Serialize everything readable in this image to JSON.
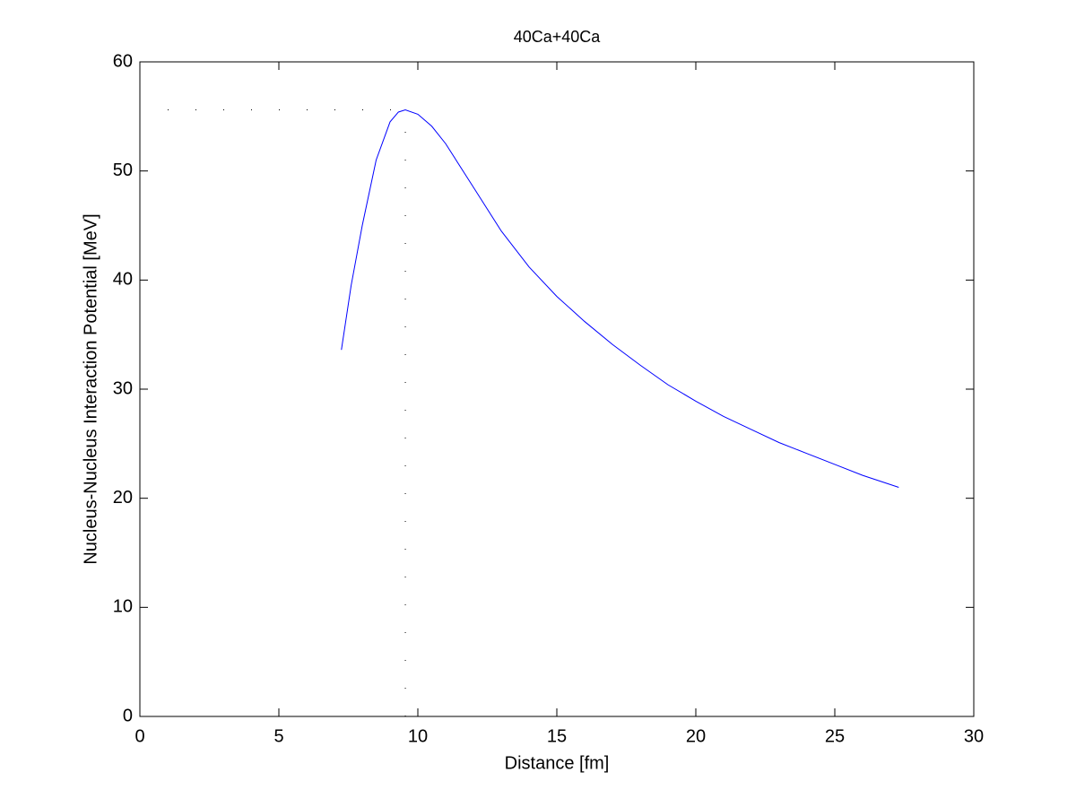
{
  "chart_data": {
    "type": "line",
    "title": "40Ca+40Ca",
    "xlabel": "Distance [fm]",
    "ylabel": "Nucleus-Nucleus Interaction Potential [MeV]",
    "xlim": [
      0,
      30
    ],
    "xticks": [
      0,
      5,
      10,
      15,
      20,
      25,
      30
    ],
    "ylim": [
      0,
      60
    ],
    "yticks": [
      0,
      10,
      20,
      30,
      40,
      50,
      60
    ],
    "grid": false,
    "series": [
      {
        "color": "#0000ff",
        "style": "solid",
        "x": [
          7.25,
          7.6,
          8,
          8.5,
          9,
          9.3,
          9.55,
          10,
          10.5,
          11,
          12,
          13,
          14,
          15,
          16,
          17,
          18,
          19,
          20,
          21,
          22,
          23,
          24,
          25,
          26,
          27.3
        ],
        "values": [
          33.6,
          39.5,
          45,
          51,
          54.5,
          55.4,
          55.6,
          55.2,
          54.1,
          52.5,
          48.5,
          44.5,
          41.2,
          38.5,
          36.2,
          34.1,
          32.2,
          30.4,
          28.9,
          27.5,
          26.3,
          25.1,
          24.1,
          23.1,
          22.1,
          21.0
        ]
      },
      {
        "color": "#000000",
        "style": "dotted",
        "x": [
          1,
          9.55
        ],
        "values": [
          55.6,
          55.6
        ]
      },
      {
        "color": "#000000",
        "style": "dotted",
        "x": [
          9.55,
          9.55
        ],
        "values": [
          0,
          55.6
        ]
      }
    ]
  }
}
